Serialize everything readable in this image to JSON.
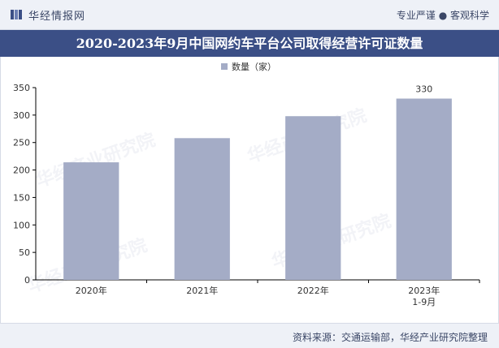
{
  "header": {
    "brand": "华经情报网",
    "slogan": "专业严谨 ● 客观科学"
  },
  "title": "2020-2023年9月中国网约车平台公司取得经营许可证数量",
  "footer": {
    "source": "资料来源：交通运输部，华经产业研究院整理"
  },
  "watermark": "华经产业研究院",
  "chart_data": {
    "type": "bar",
    "categories": [
      "2020年",
      "2021年",
      "2022年",
      "2023年 1-9月"
    ],
    "category_lines": [
      [
        "2020年"
      ],
      [
        "2021年"
      ],
      [
        "2022年"
      ],
      [
        "2023年",
        "1-9月"
      ]
    ],
    "series": [
      {
        "name": "数量（家）",
        "values": [
          214,
          258,
          298,
          330
        ]
      }
    ],
    "data_labels": {
      "3": "330"
    },
    "ylim": [
      0,
      350
    ],
    "yticks": [
      0,
      50,
      100,
      150,
      200,
      250,
      300,
      350
    ],
    "bar_color": "#a4acc6",
    "legend_position": "top-center",
    "grid": false
  }
}
